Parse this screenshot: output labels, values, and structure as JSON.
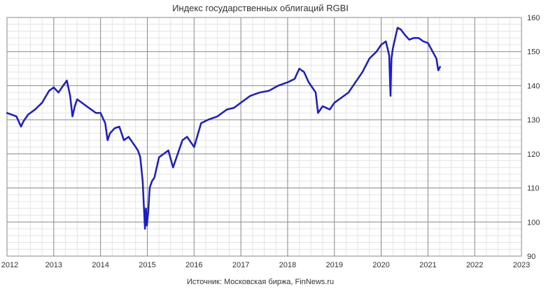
{
  "chart_data": {
    "type": "line",
    "title": "Индекс государственных облигаций RGBI",
    "source": "Источник: Московская биржа, FinNews.ru",
    "xlabel": "",
    "ylabel": "",
    "xlim": [
      2012,
      2023
    ],
    "ylim": [
      90,
      160
    ],
    "x_ticks": [
      "2012",
      "2013",
      "2014",
      "2015",
      "2016",
      "2017",
      "2018",
      "2019",
      "2020",
      "2021",
      "2022",
      "2023"
    ],
    "y_ticks": [
      "90",
      "100",
      "110",
      "120",
      "130",
      "140",
      "150",
      "160"
    ],
    "y_axis_position": "right",
    "grid": true,
    "legend": "none",
    "line_color": "#1a1adb",
    "series": [
      {
        "x": [
          2012.0,
          2012.1,
          2012.2,
          2012.3,
          2012.35,
          2012.45,
          2012.6,
          2012.75,
          2012.9,
          2013.0,
          2013.1,
          2013.2,
          2013.28,
          2013.35,
          2013.4,
          2013.45,
          2013.5,
          2013.6,
          2013.7,
          2013.8,
          2013.9,
          2014.0,
          2014.1,
          2014.15,
          2014.2,
          2014.3,
          2014.4,
          2014.5,
          2014.6,
          2014.7,
          2014.8,
          2014.85,
          2014.9,
          2014.95,
          2014.97,
          2014.99,
          2015.02,
          2015.05,
          2015.1,
          2015.15,
          2015.25,
          2015.35,
          2015.45,
          2015.55,
          2015.65,
          2015.75,
          2015.85,
          2016.0,
          2016.15,
          2016.3,
          2016.5,
          2016.7,
          2016.85,
          2017.0,
          2017.2,
          2017.4,
          2017.6,
          2017.8,
          2018.0,
          2018.15,
          2018.25,
          2018.35,
          2018.45,
          2018.6,
          2018.65,
          2018.75,
          2018.9,
          2019.0,
          2019.15,
          2019.3,
          2019.45,
          2019.6,
          2019.75,
          2019.9,
          2020.0,
          2020.1,
          2020.17,
          2020.2,
          2020.22,
          2020.25,
          2020.3,
          2020.35,
          2020.42,
          2020.5,
          2020.6,
          2020.7,
          2020.8,
          2020.9,
          2021.0,
          2021.1,
          2021.18,
          2021.22,
          2021.26
        ],
        "values": [
          132.0,
          131.5,
          131.0,
          128.0,
          129.5,
          131.5,
          133.0,
          135.0,
          138.5,
          139.5,
          138.0,
          140.0,
          141.5,
          137.0,
          131.0,
          134.0,
          136.0,
          135.0,
          134.0,
          133.0,
          132.0,
          132.0,
          129.0,
          124.0,
          126.0,
          127.5,
          128.0,
          124.0,
          125.0,
          123.0,
          121.0,
          119.0,
          112.0,
          98.0,
          104.0,
          99.0,
          103.0,
          110.0,
          112.0,
          113.0,
          119.0,
          120.0,
          121.0,
          116.0,
          120.0,
          124.0,
          125.0,
          122.0,
          129.0,
          130.0,
          131.0,
          133.0,
          133.5,
          135.0,
          137.0,
          138.0,
          138.5,
          140.0,
          141.0,
          142.0,
          145.0,
          144.0,
          141.0,
          138.0,
          132.0,
          134.0,
          133.0,
          135.0,
          136.5,
          138.0,
          141.0,
          144.0,
          148.0,
          150.0,
          152.0,
          153.0,
          149.0,
          137.0,
          148.0,
          151.0,
          154.0,
          157.0,
          156.5,
          155.0,
          153.5,
          154.0,
          154.0,
          153.0,
          152.5,
          150.0,
          148.0,
          144.5,
          145.5
        ]
      }
    ]
  }
}
